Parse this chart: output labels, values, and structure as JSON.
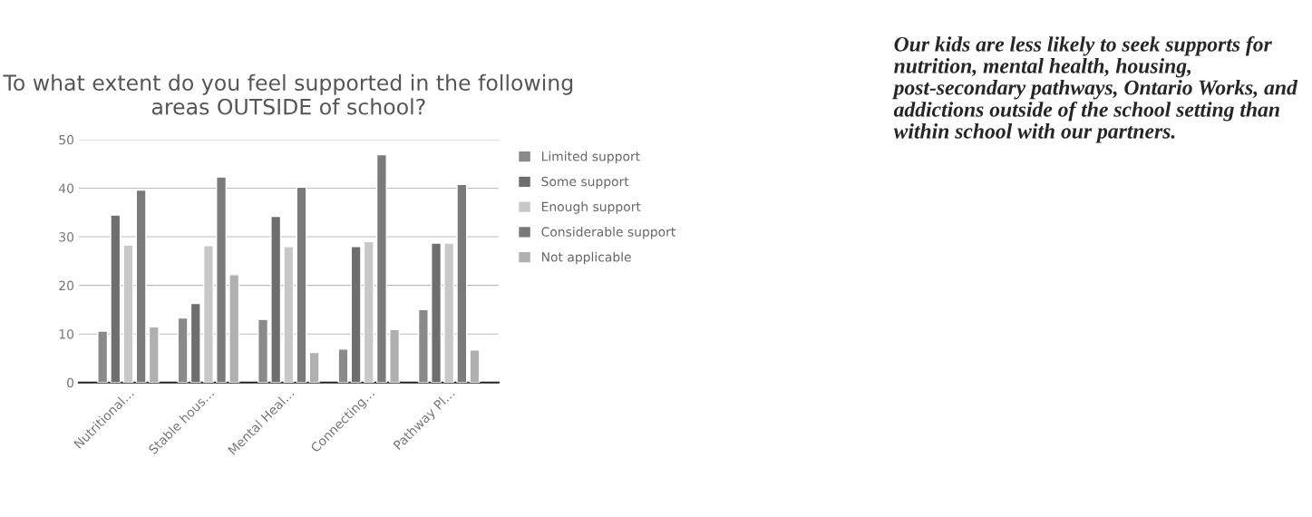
{
  "chart_data": {
    "type": "bar",
    "title": "To what extent do you feel supported in the following areas OUTSIDE of school?",
    "categories": [
      "Nutritional…",
      "Stable hous…",
      "Mental Heal…",
      "Connecting…",
      "Pathway Pl…"
    ],
    "series": [
      {
        "name": "Limited support",
        "color": "#8a8a8a",
        "values": [
          10.6,
          13.3,
          13.0,
          6.9,
          15.0
        ]
      },
      {
        "name": "Some support",
        "color": "#6e6e6e",
        "values": [
          34.5,
          16.3,
          34.2,
          28.0,
          28.7
        ]
      },
      {
        "name": "Enough support",
        "color": "#c8c8c8",
        "values": [
          28.3,
          28.2,
          28.0,
          29.0,
          28.7
        ]
      },
      {
        "name": "Considerable support",
        "color": "#7a7a7a",
        "values": [
          39.6,
          42.3,
          40.2,
          46.9,
          40.8
        ]
      },
      {
        "name": "Not applicable",
        "color": "#b0b0b0",
        "values": [
          11.5,
          22.2,
          6.2,
          10.9,
          6.7
        ]
      }
    ],
    "ylim": [
      0,
      50
    ],
    "yticks": [
      0,
      10,
      20,
      30,
      40,
      50
    ],
    "grid": "y",
    "legend": "right",
    "annotations": [
      "Our kids are less likely to seek supports for nutrition, mental health, housing, post-secondary pathways, Ontario Works, and addictions outside of the school setting than within school with our partners."
    ]
  }
}
